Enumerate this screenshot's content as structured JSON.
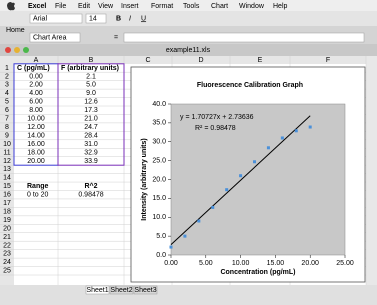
{
  "menu": {
    "app": "Excel",
    "items": [
      "File",
      "Edit",
      "View",
      "Insert",
      "Format",
      "Tools",
      "Chart",
      "Window",
      "Help"
    ]
  },
  "toolbar": {
    "font": "Arial",
    "size": "14",
    "styles": [
      "B",
      "I",
      "U"
    ]
  },
  "ribbon_tab": "Home",
  "formula_bar": {
    "name_box": "Chart Area",
    "formula": "="
  },
  "window_title": "example11.xls",
  "columns": [
    "A",
    "B",
    "C",
    "D",
    "E",
    "F"
  ],
  "rows": [
    "1",
    "2",
    "3",
    "4",
    "5",
    "6",
    "7",
    "8",
    "9",
    "10",
    "11",
    "12",
    "13",
    "14",
    "15",
    "16",
    "17",
    "18",
    "19",
    "20",
    "21",
    "22",
    "23",
    "24",
    "25"
  ],
  "table": {
    "rows": [
      [
        "C (pg/mL)",
        "F (arbitrary units)"
      ],
      [
        "0.00",
        "2.1"
      ],
      [
        "2.00",
        "5.0"
      ],
      [
        "4.00",
        "9.0"
      ],
      [
        "6.00",
        "12.6"
      ],
      [
        "8.00",
        "17.3"
      ],
      [
        "10.00",
        "21.0"
      ],
      [
        "12.00",
        "24.7"
      ],
      [
        "14.00",
        "28.4"
      ],
      [
        "16.00",
        "31.0"
      ],
      [
        "18.00",
        "32.9"
      ],
      [
        "20.00",
        "33.9"
      ]
    ]
  },
  "summary": {
    "rows": [
      [
        "Range",
        "R^2"
      ],
      [
        "0 to 20",
        "0.98478"
      ]
    ]
  },
  "chart": {
    "type": "scatter",
    "title": "Fluorescence Calibration Graph",
    "x_label": "Concentration (pg/mL)",
    "y_label": "Intensity (arbitrary units)",
    "x": [
      0,
      2,
      4,
      6,
      8,
      10,
      12,
      14,
      16,
      18,
      20
    ],
    "values": [
      2.1,
      5.0,
      9.0,
      12.6,
      17.3,
      21.0,
      24.7,
      28.4,
      31.0,
      32.9,
      33.9
    ],
    "color": "#4a90d9",
    "xlim": [
      0,
      25
    ],
    "ylim": [
      0,
      40
    ],
    "xticks": [
      {
        "value": 0,
        "label": "0.00"
      },
      {
        "value": 5,
        "label": "5.00"
      },
      {
        "value": 10,
        "label": "10.00"
      },
      {
        "value": 15,
        "label": "15.00"
      },
      {
        "value": 20,
        "label": "20.00"
      },
      {
        "value": 25,
        "label": "25.00"
      }
    ],
    "yticks": [
      {
        "value": 0,
        "label": "0.0"
      },
      {
        "value": 5,
        "label": "5.0"
      },
      {
        "value": 10,
        "label": "10.0"
      },
      {
        "value": 15,
        "label": "15.0"
      },
      {
        "value": 20,
        "label": "20.0"
      },
      {
        "value": 25,
        "label": "25.0"
      },
      {
        "value": 30,
        "label": "30.0"
      },
      {
        "value": 35,
        "label": "35.0"
      },
      {
        "value": 40,
        "label": "40.0"
      }
    ],
    "trendline": {
      "equation": "y = 1.70727x + 2.73636",
      "r_squared": "R² = 0.98478",
      "slope": 1.70727,
      "intercept": 2.73636
    }
  },
  "sheet_tabs": [
    "Sheet1",
    "Sheet2",
    "Sheet3"
  ]
}
